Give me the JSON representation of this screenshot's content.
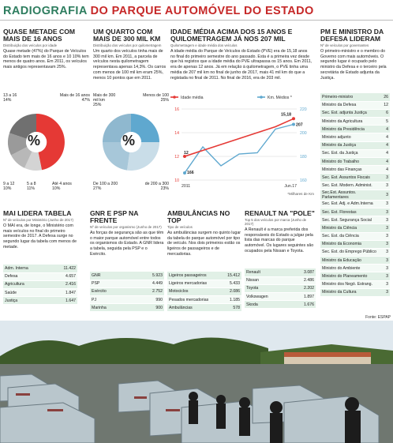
{
  "header": {
    "title_a": "RADIOGRAFIA",
    "title_b": "DO PARQUE AUTOMÓVEL DO ESTADO"
  },
  "c1": {
    "title": "QUASE METADE COM MAIS DE 16 ANOS",
    "sub": "Distribuição dos veículos por idade",
    "text": "Quase metade (47%) do Parque de Veículos do Estado tem mais de 16 anos e 10 10% tem menos de quatro anos. Em 2011, os veículos mais antigos representavam 25%.",
    "labels": {
      "a": "13 a 16",
      "a_p": "14%",
      "b": "Mais de 16 anos",
      "b_p": "47%",
      "c": "9 a 12",
      "c_p": "10%",
      "d": "5 a 8",
      "d_p": "11%",
      "e": "Até 4 anos",
      "e_p": "10%",
      "center": "%"
    }
  },
  "c2": {
    "title": "UM QUARTO COM MAIS DE 300 MIL KM",
    "sub": "Distribuição dos veículos por quilometragem",
    "text": "Um quarto dos veículos tinha mais de 300 mil km. Em 2011, a parcela de veículos nesta quilometragem representava apenas 14,3%. Os carros com menos de 100 mil km eram 25%, menos 10 pontos que em 2011.",
    "labels": {
      "a": "Mais de 300 mil km",
      "a_p": "25%",
      "b": "Menos de 100",
      "b_p": "25%",
      "c": "De 100 a 200",
      "c_p": "27%",
      "d": "de 200 a 300",
      "d_p": "23%",
      "center": "%"
    }
  },
  "c3": {
    "title": "IDADE MÉDIA ACIMA DOS 15 ANOS E QUILOMETRAGEM JÁ NOS 207 MIL",
    "sub": "Quilometragem e idade média dos veículos",
    "text": "A idade média do Parque de Veículos do Estado (PVE) era de 15,18 anos no final do primeiro semestre do ano passado. Esta é a primeira vez desde que há registos que a idade média do PVE ultrapassa os 15 anos. Em 2011, era de apenas 12 anos. Já em relação à quilometragem, o PVE tinha uma média de 207 mil km no final de junho de 2017, mais 41 mil km do que a registada no final de 2011. No final de 2016, era de 203 mil."
  },
  "chart_data": {
    "type": "line",
    "legend": [
      "Idade média",
      "Km. Médios *"
    ],
    "footnote": "*Milhares de Km",
    "x_labels": [
      "2011",
      "Jun.17"
    ],
    "left_axis": [
      16,
      14,
      12,
      10
    ],
    "right_axis": [
      220,
      200,
      180,
      160
    ],
    "series": [
      {
        "name": "Idade média",
        "values": [
          12,
          12.5,
          13,
          13.5,
          14,
          14.5,
          15.18
        ]
      },
      {
        "name": "Km. Médios *",
        "values": [
          166,
          188,
          172,
          182,
          183,
          203,
          207
        ]
      }
    ],
    "labels": {
      "start_idade": "12",
      "start_km": "166",
      "end_idade": "15,18",
      "end_km": "207"
    }
  },
  "c4": {
    "title": "PM E MINISTRO DA DEFESA LIDERAM",
    "sub": "Nº de veículos por governantes",
    "text": "O primeiro-ministro e o membro do Governo com mais automóveis. O segundo lugar é ocupado pelo ministro da Defesa e o terceiro pela secretária de Estado adjunta da Justiça.",
    "rows": [
      [
        "Primeiro-ministro",
        "26"
      ],
      [
        "Ministro da Defesa",
        "12"
      ],
      [
        "Sec. Est. adjunta Justiça",
        "6"
      ],
      [
        "Ministro da Agricultura",
        "5"
      ],
      [
        "Ministro da Presidência",
        "4"
      ],
      [
        "Ministro adjunto",
        "4"
      ],
      [
        "Ministro da Justiça",
        "4"
      ],
      [
        "Sec. Est. da Justiça",
        "4"
      ],
      [
        "Ministro do Trabalho",
        "4"
      ],
      [
        "Ministro das Finanças",
        "4"
      ],
      [
        "Sec. Est. Assuntos Fiscais",
        "3"
      ],
      [
        "Sec. Est. Modern. Administ.",
        "3"
      ],
      [
        "Sec.Est. Assuntos. Parlamentares",
        "3"
      ],
      [
        "Sec. Est. Adj. e Adm.Interna",
        "3"
      ],
      [
        "Sec. Est. Florestas",
        "3"
      ],
      [
        "Sec. Est. Segurança Social",
        "3"
      ],
      [
        "Ministro da Ciência",
        "3"
      ],
      [
        "Sec. Est. da Ciência",
        "3"
      ],
      [
        "Ministro da Economia",
        "3"
      ],
      [
        "Sec. Est. do Emprego Público",
        "3"
      ],
      [
        "Ministro da Educação",
        "3"
      ],
      [
        "Ministro do Ambiente",
        "3"
      ],
      [
        "Ministro do Planeamento",
        "3"
      ],
      [
        "Ministro dos Negó. Estrang.",
        "3"
      ],
      [
        "Ministro da Cultura",
        "3"
      ]
    ]
  },
  "b1": {
    "title": "MAI LIDERA TABELA",
    "sub": "Nº de veículos por Ministério (Junho de 2017)",
    "text": "O MAI era, de longe, o Ministério com mais veículos no final do primeiro semestre de 2017. A Defesa surge no segundo lugar da tabela com menos de metade.",
    "rows": [
      [
        "Adm. Interna",
        "11.422"
      ],
      [
        "Defesa",
        "4.657"
      ],
      [
        "Agricultura",
        "2.416"
      ],
      [
        "Saúde",
        "1.847"
      ],
      [
        "Justiça",
        "1.647"
      ]
    ]
  },
  "b2": {
    "title": "GNR E PSP NA FRENTE",
    "sub": "Nº de veículos por organismo (Junho de 2017)",
    "text": "As forças de segurança são as que têm o maior parque automóvel entre todos os organismos do Estado. A GNR lidera a tabela, seguida pela PSP e o Exército.",
    "rows": [
      [
        "GNR",
        "5.923"
      ],
      [
        "PSP",
        "4.449"
      ],
      [
        "Exército",
        "2.752"
      ],
      [
        "PJ",
        "990"
      ],
      [
        "Marinha",
        "900"
      ]
    ]
  },
  "b3": {
    "title": "AMBULÂNCIAS NO TOP",
    "sub": "Tipo de veículos",
    "text": "As ambulâncias surgem no quinto lugar da tabela do parque automóvel por tipo de veículo. Nos dois primeiros estão os ligeiros de passageiros e de mercadorias.",
    "rows": [
      [
        "Ligeiros passageiros",
        "15.412"
      ],
      [
        "Ligeiros mercadorias",
        "5.433"
      ],
      [
        "Motociclos",
        "2.086"
      ],
      [
        "Pesados mercadorias",
        "1.185"
      ],
      [
        "Ambulâncias",
        "578"
      ]
    ]
  },
  "b4": {
    "title": "RENAULT NA \"POLE\"",
    "sub": "Top 5 dos veículos por marca (Junho de 2017)",
    "text": "A Renault é a marca preferida dos responsáveis do Estado a julgar pela lista das marcas do parque automóvel. Os lugares seguintes são ocupados pela Nissan e Toyota.",
    "rows": [
      [
        "Renault",
        "3.087"
      ],
      [
        "Nissan",
        "2.486"
      ],
      [
        "Toyota",
        "2.202"
      ],
      [
        "Volkswagen",
        "1.897"
      ],
      [
        "Skoda",
        "1.676"
      ]
    ]
  },
  "fonte": "Fonte: ESPAP",
  "colors": {
    "green": "#2e7d5f",
    "red": "#e53935",
    "blue": "#5fa8cf"
  }
}
